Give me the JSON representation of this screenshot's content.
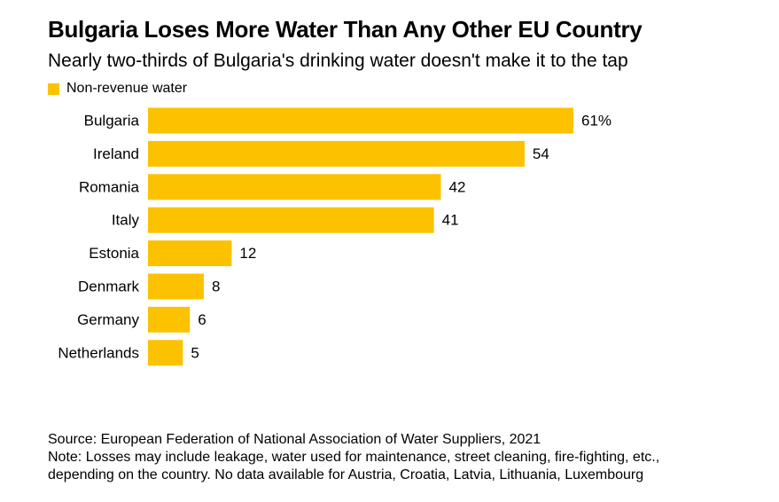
{
  "chart_data": {
    "type": "bar",
    "orientation": "horizontal",
    "title": "Bulgaria Loses More Water Than Any Other EU Country",
    "subtitle": "Nearly two-thirds of Bulgaria's drinking water doesn't make it to the tap",
    "legend": [
      "Non-revenue water"
    ],
    "legend_position": "top-left",
    "categories": [
      "Bulgaria",
      "Ireland",
      "Romania",
      "Italy",
      "Estonia",
      "Denmark",
      "Germany",
      "Netherlands"
    ],
    "series": [
      {
        "name": "Non-revenue water",
        "values": [
          61,
          54,
          42,
          41,
          12,
          8,
          6,
          5
        ],
        "color": "#FCC200"
      }
    ],
    "value_labels": [
      "61%",
      "54",
      "42",
      "41",
      "12",
      "8",
      "6",
      "5"
    ],
    "xlim": [
      0,
      61
    ],
    "grid": false,
    "axes_visible": false
  },
  "footer": {
    "source": "Source: European Federation of National Association of Water Suppliers, 2021",
    "note_line1": "Note: Losses may include leakage, water used for maintenance, street cleaning, fire-fighting, etc.,",
    "note_line2": "depending on the country. No data available for Austria, Croatia, Latvia, Lithuania, Luxembourg"
  },
  "colors": {
    "bar": "#FCC200",
    "text": "#000000",
    "background": "#FFFFFF"
  }
}
